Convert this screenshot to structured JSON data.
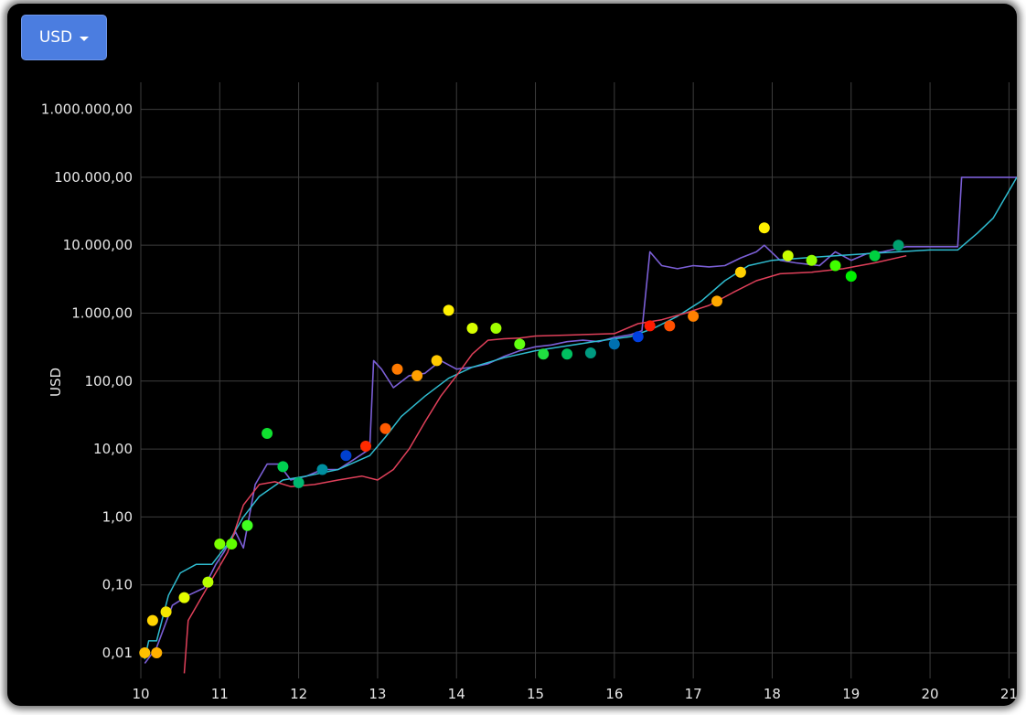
{
  "currency_selector": {
    "label": "USD",
    "icon": "caret-down-icon"
  },
  "colors": {
    "background": "#000000",
    "button": "#4b7de0",
    "price": "#7b5fd6",
    "trend_cyan": "#2fbcd0",
    "moving_average_red": "#e0405a",
    "grid": "#3d3d3d"
  },
  "chart_data": {
    "type": "line",
    "title": "",
    "xlabel": "",
    "ylabel": "USD",
    "y_scale": "log",
    "xlim": [
      10,
      21.1
    ],
    "ylim": [
      0.0042,
      2500000
    ],
    "x_ticks": [
      {
        "value": 10,
        "label": "10"
      },
      {
        "value": 11,
        "label": "11"
      },
      {
        "value": 12,
        "label": "12"
      },
      {
        "value": 13,
        "label": "13"
      },
      {
        "value": 14,
        "label": "14"
      },
      {
        "value": 15,
        "label": "15"
      },
      {
        "value": 16,
        "label": "16"
      },
      {
        "value": 17,
        "label": "17"
      },
      {
        "value": 18,
        "label": "18"
      },
      {
        "value": 19,
        "label": "19"
      },
      {
        "value": 20,
        "label": "20"
      },
      {
        "value": 21,
        "label": "21"
      }
    ],
    "y_ticks": [
      {
        "value": 0.01,
        "label": "0,01"
      },
      {
        "value": 0.1,
        "label": "0,10"
      },
      {
        "value": 1,
        "label": "1,00"
      },
      {
        "value": 10,
        "label": "10,00"
      },
      {
        "value": 100,
        "label": "100,00"
      },
      {
        "value": 1000,
        "label": "1.000,00"
      },
      {
        "value": 10000,
        "label": "10.000,00"
      },
      {
        "value": 100000,
        "label": "100.000,00"
      },
      {
        "value": 1000000,
        "label": "1.000.000,00"
      }
    ],
    "grid": true,
    "series": [
      {
        "color": "#7b5fd6",
        "style": "line",
        "points": [
          [
            10.05,
            0.007
          ],
          [
            10.2,
            0.012
          ],
          [
            10.4,
            0.05
          ],
          [
            10.6,
            0.07
          ],
          [
            10.8,
            0.09
          ],
          [
            10.95,
            0.2
          ],
          [
            11.05,
            0.3
          ],
          [
            11.2,
            0.6
          ],
          [
            11.3,
            0.35
          ],
          [
            11.45,
            3
          ],
          [
            11.6,
            6
          ],
          [
            11.75,
            6
          ],
          [
            11.9,
            3.5
          ],
          [
            12.1,
            4
          ],
          [
            12.3,
            5
          ],
          [
            12.5,
            5
          ],
          [
            12.7,
            7
          ],
          [
            12.9,
            10
          ],
          [
            12.95,
            200
          ],
          [
            13.05,
            150
          ],
          [
            13.2,
            80
          ],
          [
            13.4,
            120
          ],
          [
            13.6,
            130
          ],
          [
            13.8,
            200
          ],
          [
            14,
            150
          ],
          [
            14.2,
            160
          ],
          [
            14.4,
            180
          ],
          [
            14.6,
            230
          ],
          [
            14.8,
            280
          ],
          [
            15,
            320
          ],
          [
            15.2,
            340
          ],
          [
            15.4,
            380
          ],
          [
            15.6,
            400
          ],
          [
            15.8,
            380
          ],
          [
            16,
            440
          ],
          [
            16.2,
            480
          ],
          [
            16.35,
            550
          ],
          [
            16.45,
            8000
          ],
          [
            16.6,
            5000
          ],
          [
            16.8,
            4500
          ],
          [
            17,
            5000
          ],
          [
            17.2,
            4800
          ],
          [
            17.4,
            5000
          ],
          [
            17.6,
            6500
          ],
          [
            17.8,
            8000
          ],
          [
            17.9,
            10000
          ],
          [
            18.1,
            6000
          ],
          [
            18.3,
            5500
          ],
          [
            18.6,
            5000
          ],
          [
            18.8,
            8000
          ],
          [
            19,
            6000
          ],
          [
            19.2,
            7500
          ],
          [
            19.4,
            8000
          ],
          [
            19.6,
            9000
          ],
          [
            19.7,
            9500
          ],
          [
            19.9,
            9500
          ],
          [
            20.35,
            9500
          ],
          [
            20.4,
            100000
          ],
          [
            21.1,
            100000
          ]
        ]
      },
      {
        "color": "#2fbcd0",
        "style": "line",
        "points": [
          [
            10.05,
            0.008
          ],
          [
            10.1,
            0.015
          ],
          [
            10.2,
            0.015
          ],
          [
            10.35,
            0.07
          ],
          [
            10.5,
            0.15
          ],
          [
            10.7,
            0.2
          ],
          [
            10.9,
            0.2
          ],
          [
            11.1,
            0.4
          ],
          [
            11.3,
            1
          ],
          [
            11.5,
            2
          ],
          [
            11.8,
            3.5
          ],
          [
            12.1,
            4
          ],
          [
            12.5,
            5
          ],
          [
            12.9,
            8
          ],
          [
            13.1,
            15
          ],
          [
            13.3,
            30
          ],
          [
            13.6,
            60
          ],
          [
            13.9,
            110
          ],
          [
            14.2,
            160
          ],
          [
            14.6,
            220
          ],
          [
            15,
            280
          ],
          [
            15.4,
            330
          ],
          [
            15.8,
            390
          ],
          [
            16.2,
            450
          ],
          [
            16.5,
            600
          ],
          [
            16.8,
            900
          ],
          [
            17.1,
            1500
          ],
          [
            17.4,
            3000
          ],
          [
            17.7,
            5000
          ],
          [
            18,
            6000
          ],
          [
            18.4,
            6500
          ],
          [
            18.8,
            7000
          ],
          [
            19.2,
            7500
          ],
          [
            19.6,
            8000
          ],
          [
            20,
            8500
          ],
          [
            20.35,
            8500
          ],
          [
            20.6,
            15000
          ],
          [
            20.8,
            25000
          ],
          [
            21.1,
            100000
          ]
        ]
      },
      {
        "color": "#e0405a",
        "style": "line",
        "points": [
          [
            10.55,
            0.005
          ],
          [
            10.6,
            0.03
          ],
          [
            10.75,
            0.06
          ],
          [
            10.9,
            0.12
          ],
          [
            11.1,
            0.3
          ],
          [
            11.3,
            1.5
          ],
          [
            11.5,
            3
          ],
          [
            11.7,
            3.3
          ],
          [
            11.9,
            2.8
          ],
          [
            12.2,
            3
          ],
          [
            12.5,
            3.5
          ],
          [
            12.8,
            4
          ],
          [
            13,
            3.5
          ],
          [
            13.2,
            5
          ],
          [
            13.4,
            10
          ],
          [
            13.6,
            25
          ],
          [
            13.8,
            60
          ],
          [
            14,
            120
          ],
          [
            14.2,
            250
          ],
          [
            14.4,
            400
          ],
          [
            14.6,
            420
          ],
          [
            14.8,
            430
          ],
          [
            15,
            460
          ],
          [
            15.5,
            480
          ],
          [
            16,
            500
          ],
          [
            16.3,
            700
          ],
          [
            16.6,
            800
          ],
          [
            16.9,
            1000
          ],
          [
            17.2,
            1300
          ],
          [
            17.5,
            2000
          ],
          [
            17.8,
            3000
          ],
          [
            18.1,
            3800
          ],
          [
            18.5,
            4000
          ],
          [
            18.9,
            4500
          ],
          [
            19.3,
            5500
          ],
          [
            19.7,
            7000
          ]
        ]
      },
      {
        "style": "dots",
        "points": [
          {
            "x": 10.15,
            "y": 0.03,
            "color": "#ffd400"
          },
          {
            "x": 10.32,
            "y": 0.04,
            "color": "#f5e600"
          },
          {
            "x": 10.05,
            "y": 0.01,
            "color": "#ffc000"
          },
          {
            "x": 10.2,
            "y": 0.01,
            "color": "#ffb000"
          },
          {
            "x": 10.55,
            "y": 0.065,
            "color": "#e6ff00"
          },
          {
            "x": 10.85,
            "y": 0.11,
            "color": "#b8ff00"
          },
          {
            "x": 11,
            "y": 0.4,
            "color": "#7cff00"
          },
          {
            "x": 11.15,
            "y": 0.4,
            "color": "#60ff00"
          },
          {
            "x": 11.35,
            "y": 0.75,
            "color": "#40ff20"
          },
          {
            "x": 11.6,
            "y": 17,
            "color": "#10e030"
          },
          {
            "x": 11.8,
            "y": 5.5,
            "color": "#00d050"
          },
          {
            "x": 12,
            "y": 3.2,
            "color": "#00b870"
          },
          {
            "x": 12.3,
            "y": 5,
            "color": "#008fa0"
          },
          {
            "x": 12.6,
            "y": 8,
            "color": "#0040d0"
          },
          {
            "x": 12.85,
            "y": 11,
            "color": "#ff2a00"
          },
          {
            "x": 13.1,
            "y": 20,
            "color": "#ff5a00"
          },
          {
            "x": 13.25,
            "y": 150,
            "color": "#ff7a00"
          },
          {
            "x": 13.5,
            "y": 120,
            "color": "#ffa000"
          },
          {
            "x": 13.75,
            "y": 200,
            "color": "#ffc800"
          },
          {
            "x": 13.9,
            "y": 1100,
            "color": "#fff000"
          },
          {
            "x": 14.2,
            "y": 600,
            "color": "#d8ff00"
          },
          {
            "x": 14.5,
            "y": 600,
            "color": "#a0ff00"
          },
          {
            "x": 14.8,
            "y": 350,
            "color": "#60ff10"
          },
          {
            "x": 15.1,
            "y": 250,
            "color": "#20e040"
          },
          {
            "x": 15.4,
            "y": 250,
            "color": "#00c060"
          },
          {
            "x": 15.7,
            "y": 260,
            "color": "#009a80"
          },
          {
            "x": 16,
            "y": 350,
            "color": "#0070b0"
          },
          {
            "x": 16.3,
            "y": 450,
            "color": "#0040e0"
          },
          {
            "x": 16.45,
            "y": 650,
            "color": "#ff1a00"
          },
          {
            "x": 16.7,
            "y": 650,
            "color": "#ff5000"
          },
          {
            "x": 17,
            "y": 900,
            "color": "#ff8000"
          },
          {
            "x": 17.3,
            "y": 1500,
            "color": "#ffa800"
          },
          {
            "x": 17.6,
            "y": 4000,
            "color": "#ffd000"
          },
          {
            "x": 17.9,
            "y": 18000,
            "color": "#fff000"
          },
          {
            "x": 18.2,
            "y": 7000,
            "color": "#c8ff00"
          },
          {
            "x": 18.5,
            "y": 6000,
            "color": "#90ff00"
          },
          {
            "x": 18.8,
            "y": 5000,
            "color": "#40ff00"
          },
          {
            "x": 19,
            "y": 3500,
            "color": "#00f000"
          },
          {
            "x": 19.3,
            "y": 7000,
            "color": "#00d040"
          },
          {
            "x": 19.6,
            "y": 10000,
            "color": "#00a070"
          }
        ]
      }
    ]
  }
}
